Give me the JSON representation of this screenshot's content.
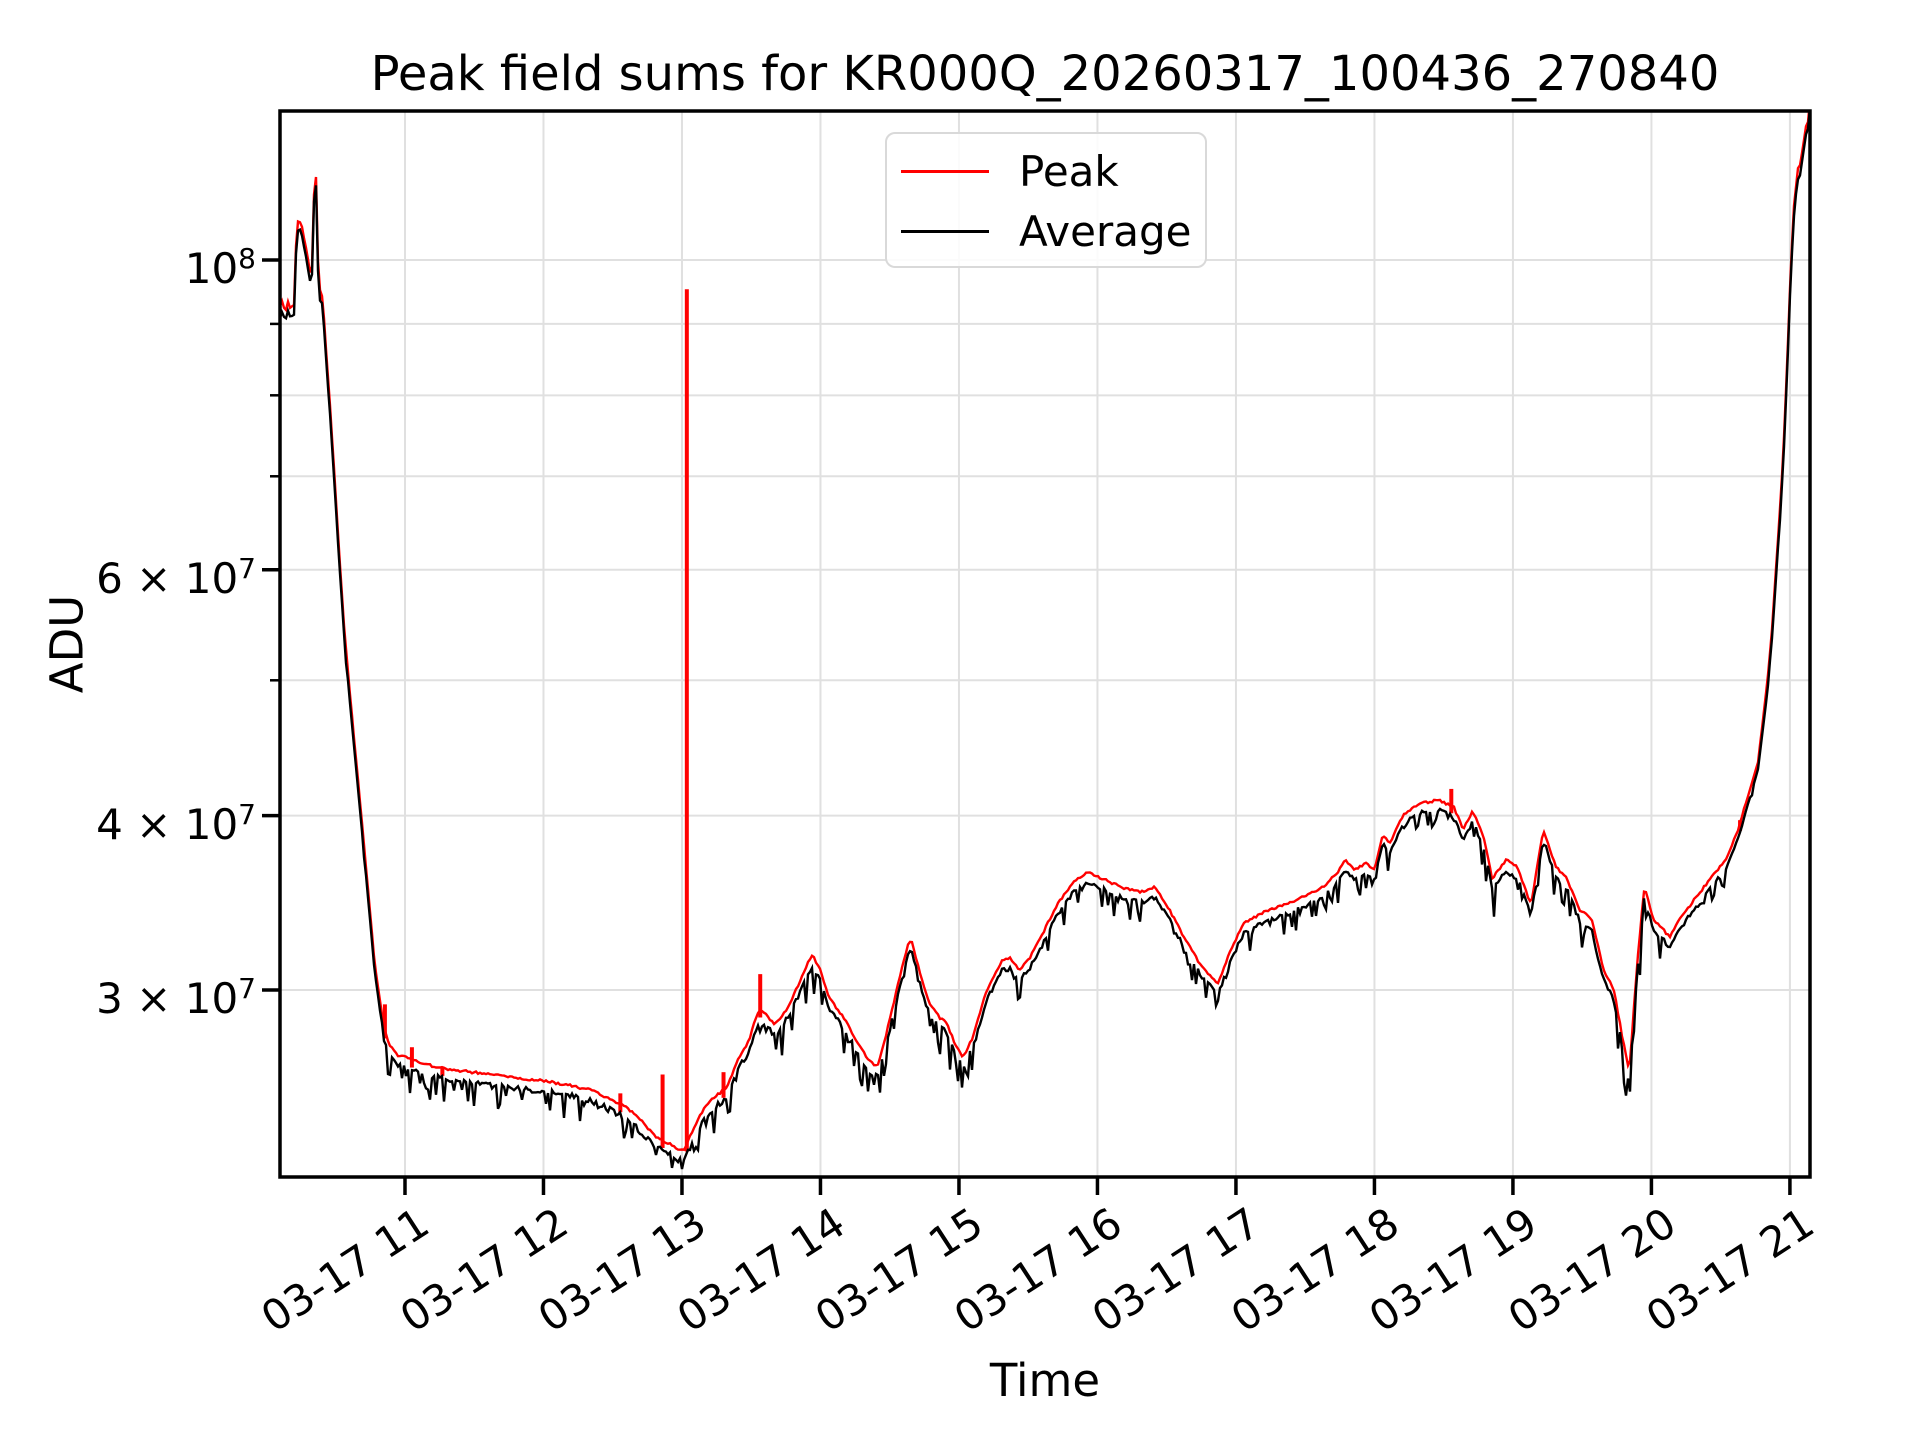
{
  "figure": {
    "title": "Peak field sums for KR000Q_20260317_100436_270840",
    "xlabel": "Time",
    "ylabel": "ADU"
  },
  "legend": {
    "position": "upper center",
    "items": [
      {
        "label": "Peak",
        "color": "#ff0000"
      },
      {
        "label": "Average",
        "color": "#000000"
      }
    ]
  },
  "chart_data": {
    "type": "line",
    "title": "Peak field sums for KR000Q_20260317_100436_270840",
    "xlabel": "Time",
    "ylabel": "ADU",
    "grid": true,
    "y_scale": "log",
    "x_unit": "hours of day on 03-17",
    "x_range": [
      10.0975,
      21.145
    ],
    "y_range_adu": [
      22040000,
      127860000
    ],
    "x_ticks": [
      {
        "hour": 11,
        "label": "03-17 11"
      },
      {
        "hour": 12,
        "label": "03-17 12"
      },
      {
        "hour": 13,
        "label": "03-17 13"
      },
      {
        "hour": 14,
        "label": "03-17 14"
      },
      {
        "hour": 15,
        "label": "03-17 15"
      },
      {
        "hour": 16,
        "label": "03-17 16"
      },
      {
        "hour": 17,
        "label": "03-17 17"
      },
      {
        "hour": 18,
        "label": "03-17 18"
      },
      {
        "hour": 19,
        "label": "03-17 19"
      },
      {
        "hour": 20,
        "label": "03-17 20"
      },
      {
        "hour": 21,
        "label": "03-17 21"
      }
    ],
    "y_major_ticks": [
      {
        "value": 100000000,
        "base": "10",
        "exp": "8"
      },
      {
        "value": 60000000,
        "base": "6 × 10",
        "exp": "7"
      },
      {
        "value": 40000000,
        "base": "4 × 10",
        "exp": "7"
      },
      {
        "value": 30000000,
        "base": "3 × 10",
        "exp": "7"
      }
    ],
    "y_minor_ticks": [
      90000000,
      80000000,
      70000000,
      50000000
    ],
    "value_unit_adu": 10000000,
    "series": [
      {
        "name": "Peak",
        "color": "#ff0000",
        "relation": "upper envelope of Average (about +1.2%) plus isolated upward spikes",
        "spikes": [
          [
            10.855,
            2.93
          ],
          [
            11.05,
            2.73
          ],
          [
            11.27,
            2.64
          ],
          [
            12.555,
            2.53
          ],
          [
            12.86,
            2.61
          ],
          [
            13.035,
            9.53
          ],
          [
            13.3,
            2.62
          ],
          [
            13.565,
            3.08
          ],
          [
            18.555,
            4.18
          ],
          [
            20.64,
            3.97
          ]
        ]
      },
      {
        "name": "Average",
        "color": "#000000",
        "envelope_points": [
          [
            10.0975,
            9.15
          ],
          [
            10.115,
            9.25
          ],
          [
            10.135,
            9.05
          ],
          [
            10.155,
            9.2
          ],
          [
            10.175,
            9.1
          ],
          [
            10.205,
            9.2
          ],
          [
            10.215,
            10.35
          ],
          [
            10.23,
            10.55
          ],
          [
            10.25,
            10.5
          ],
          [
            10.27,
            10.25
          ],
          [
            10.29,
            10.0
          ],
          [
            10.31,
            9.75
          ],
          [
            10.325,
            9.5
          ],
          [
            10.335,
            10.3
          ],
          [
            10.345,
            11.2
          ],
          [
            10.352,
            11.4
          ],
          [
            10.36,
            11.3
          ],
          [
            10.367,
            10.5
          ],
          [
            10.373,
            9.7
          ],
          [
            10.38,
            9.45
          ],
          [
            10.39,
            9.35
          ],
          [
            10.405,
            9.3
          ],
          [
            10.42,
            8.8
          ],
          [
            10.45,
            8.0
          ],
          [
            10.48,
            7.2
          ],
          [
            10.52,
            6.2
          ],
          [
            10.56,
            5.4
          ],
          [
            10.6,
            4.85
          ],
          [
            10.65,
            4.3
          ],
          [
            10.7,
            3.8
          ],
          [
            10.75,
            3.35
          ],
          [
            10.78,
            3.1
          ],
          [
            10.81,
            2.95
          ],
          [
            10.85,
            2.78
          ],
          [
            10.89,
            2.7
          ],
          [
            10.95,
            2.66
          ],
          [
            11.0,
            2.65
          ],
          [
            11.15,
            2.62
          ],
          [
            11.3,
            2.6
          ],
          [
            11.5,
            2.585
          ],
          [
            11.7,
            2.57
          ],
          [
            11.9,
            2.555
          ],
          [
            12.0,
            2.55
          ],
          [
            12.2,
            2.53
          ],
          [
            12.35,
            2.51
          ],
          [
            12.46,
            2.48
          ],
          [
            12.6,
            2.44
          ],
          [
            12.7,
            2.39
          ],
          [
            12.8,
            2.33
          ],
          [
            12.9,
            2.3
          ],
          [
            12.97,
            2.28
          ],
          [
            13.02,
            2.28
          ],
          [
            13.06,
            2.33
          ],
          [
            13.12,
            2.4
          ],
          [
            13.18,
            2.45
          ],
          [
            13.25,
            2.49
          ],
          [
            13.32,
            2.52
          ],
          [
            13.42,
            2.66
          ],
          [
            13.48,
            2.72
          ],
          [
            13.53,
            2.82
          ],
          [
            13.56,
            2.87
          ],
          [
            13.61,
            2.84
          ],
          [
            13.67,
            2.8
          ],
          [
            13.73,
            2.84
          ],
          [
            13.81,
            2.94
          ],
          [
            13.89,
            3.07
          ],
          [
            13.94,
            3.14
          ],
          [
            14.0,
            3.06
          ],
          [
            14.06,
            2.93
          ],
          [
            14.12,
            2.87
          ],
          [
            14.19,
            2.81
          ],
          [
            14.27,
            2.71
          ],
          [
            14.36,
            2.63
          ],
          [
            14.41,
            2.61
          ],
          [
            14.47,
            2.74
          ],
          [
            14.55,
            2.96
          ],
          [
            14.63,
            3.19
          ],
          [
            14.66,
            3.21
          ],
          [
            14.72,
            3.04
          ],
          [
            14.79,
            2.89
          ],
          [
            14.86,
            2.83
          ],
          [
            14.91,
            2.81
          ],
          [
            14.97,
            2.71
          ],
          [
            15.03,
            2.65
          ],
          [
            15.1,
            2.74
          ],
          [
            15.2,
            2.96
          ],
          [
            15.31,
            3.11
          ],
          [
            15.37,
            3.12
          ],
          [
            15.44,
            3.06
          ],
          [
            15.51,
            3.12
          ],
          [
            15.59,
            3.23
          ],
          [
            15.71,
            3.41
          ],
          [
            15.83,
            3.54
          ],
          [
            15.93,
            3.6
          ],
          [
            16.03,
            3.56
          ],
          [
            16.17,
            3.51
          ],
          [
            16.31,
            3.48
          ],
          [
            16.42,
            3.51
          ],
          [
            16.52,
            3.38
          ],
          [
            16.64,
            3.21
          ],
          [
            16.76,
            3.07
          ],
          [
            16.87,
            2.99
          ],
          [
            16.96,
            3.16
          ],
          [
            17.06,
            3.31
          ],
          [
            17.21,
            3.37
          ],
          [
            17.36,
            3.41
          ],
          [
            17.51,
            3.46
          ],
          [
            17.63,
            3.51
          ],
          [
            17.73,
            3.59
          ],
          [
            17.79,
            3.67
          ],
          [
            17.86,
            3.61
          ],
          [
            17.94,
            3.65
          ],
          [
            18.0,
            3.61
          ],
          [
            18.06,
            3.83
          ],
          [
            18.11,
            3.77
          ],
          [
            18.21,
            3.96
          ],
          [
            18.33,
            4.03
          ],
          [
            18.46,
            4.05
          ],
          [
            18.57,
            4.01
          ],
          [
            18.64,
            3.86
          ],
          [
            18.71,
            3.98
          ],
          [
            18.79,
            3.81
          ],
          [
            18.85,
            3.56
          ],
          [
            18.95,
            3.67
          ],
          [
            19.03,
            3.63
          ],
          [
            19.13,
            3.41
          ],
          [
            19.22,
            3.86
          ],
          [
            19.31,
            3.63
          ],
          [
            19.39,
            3.56
          ],
          [
            19.48,
            3.38
          ],
          [
            19.57,
            3.33
          ],
          [
            19.65,
            3.07
          ],
          [
            19.73,
            2.96
          ],
          [
            19.79,
            2.74
          ],
          [
            19.84,
            2.59
          ],
          [
            19.9,
            3.12
          ],
          [
            19.95,
            3.52
          ],
          [
            20.01,
            3.33
          ],
          [
            20.09,
            3.27
          ],
          [
            20.13,
            3.23
          ],
          [
            20.19,
            3.31
          ],
          [
            20.31,
            3.44
          ],
          [
            20.43,
            3.56
          ],
          [
            20.55,
            3.69
          ],
          [
            20.63,
            3.87
          ],
          [
            20.71,
            4.12
          ],
          [
            20.77,
            4.32
          ],
          [
            20.83,
            4.85
          ],
          [
            20.87,
            5.35
          ],
          [
            20.91,
            6.15
          ],
          [
            20.95,
            7.1
          ],
          [
            20.98,
            8.3
          ],
          [
            21.005,
            9.7
          ],
          [
            21.03,
            10.8
          ],
          [
            21.055,
            11.45
          ],
          [
            21.075,
            11.55
          ],
          [
            21.095,
            11.9
          ],
          [
            21.115,
            12.3
          ],
          [
            21.13,
            12.4
          ],
          [
            21.145,
            12.85
          ]
        ],
        "noise_segments": [
          [
            10.0975,
            10.41,
            0.015
          ],
          [
            10.41,
            10.85,
            0.012
          ],
          [
            10.85,
            12.35,
            0.045
          ],
          [
            12.35,
            13.12,
            0.06
          ],
          [
            13.12,
            14.45,
            0.05
          ],
          [
            14.45,
            15.15,
            0.05
          ],
          [
            15.15,
            16.45,
            0.04
          ],
          [
            16.45,
            18.55,
            0.038
          ],
          [
            18.55,
            20.05,
            0.055
          ],
          [
            20.05,
            20.55,
            0.04
          ],
          [
            20.55,
            20.97,
            0.012
          ],
          [
            20.97,
            21.145,
            0.004
          ]
        ]
      }
    ],
    "style": {
      "grid_color": "#e0e0e0",
      "spine_color": "#000000",
      "peak_color": "#ff0000",
      "average_color": "#000000"
    }
  }
}
